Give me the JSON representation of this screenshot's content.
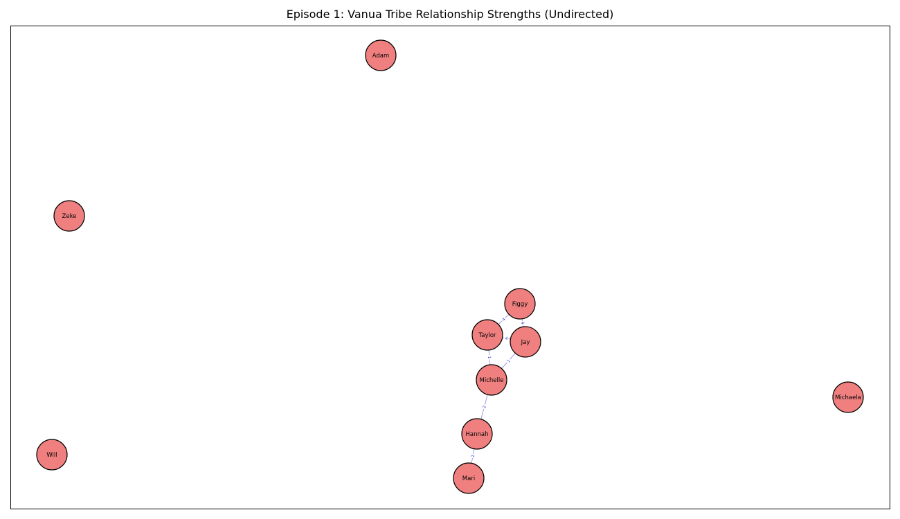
{
  "title": "Episode 1: Vanua Tribe Relationship Strengths (Undirected)",
  "colors": {
    "node_fill": "#f08080",
    "node_stroke": "#000000",
    "edge": "#8a8ad6",
    "edge_label": "#3b3bd6",
    "frame": "#000000"
  },
  "nodes": [
    {
      "id": "Adam",
      "label": "Adam"
    },
    {
      "id": "Zeke",
      "label": "Zeke"
    },
    {
      "id": "Figgy",
      "label": "Figgy"
    },
    {
      "id": "Taylor",
      "label": "Taylor"
    },
    {
      "id": "Jay",
      "label": "Jay"
    },
    {
      "id": "Michelle",
      "label": "Michelle"
    },
    {
      "id": "Michaela",
      "label": "Michaela"
    },
    {
      "id": "Hannah",
      "label": "Hannah"
    },
    {
      "id": "Will",
      "label": "Will"
    },
    {
      "id": "Mari",
      "label": "Mari"
    }
  ],
  "edges": [
    {
      "source": "Figgy",
      "target": "Taylor",
      "weight": "4"
    },
    {
      "source": "Figgy",
      "target": "Jay",
      "weight": "4"
    },
    {
      "source": "Taylor",
      "target": "Jay",
      "weight": "4"
    },
    {
      "source": "Taylor",
      "target": "Michelle",
      "weight": "1"
    },
    {
      "source": "Jay",
      "target": "Michelle",
      "weight": "1"
    },
    {
      "source": "Michelle",
      "target": "Hannah",
      "weight": "2"
    },
    {
      "source": "Hannah",
      "target": "Mari",
      "weight": "2"
    }
  ]
}
